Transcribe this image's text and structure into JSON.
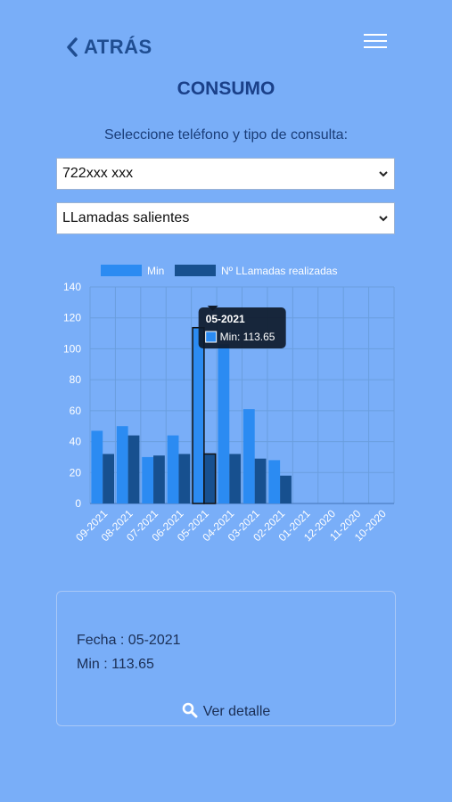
{
  "header": {
    "back_label": "ATRÁS",
    "title": "CONSUMO"
  },
  "subtitle": "Seleccione teléfono y tipo de consulta:",
  "selects": {
    "phone": {
      "value": "722xxx xxx"
    },
    "type": {
      "value": "LLamadas salientes"
    }
  },
  "colors": {
    "series_min": "#2b8bf2",
    "series_calls": "#17508f",
    "background": "#79aef8"
  },
  "chart_data": {
    "type": "bar",
    "categories": [
      "09-2021",
      "08-2021",
      "07-2021",
      "06-2021",
      "05-2021",
      "04-2021",
      "03-2021",
      "02-2021",
      "01-2021",
      "12-2020",
      "11-2020",
      "10-2020"
    ],
    "series": [
      {
        "name": "Min",
        "values": [
          47,
          50,
          30,
          44,
          113.65,
          103,
          61,
          28,
          0,
          0,
          0,
          0
        ]
      },
      {
        "name": "Nº LLamadas realizadas",
        "values": [
          32,
          44,
          31,
          32,
          32,
          32,
          29,
          18,
          0,
          0,
          0,
          0
        ]
      }
    ],
    "yticks": [
      0,
      20,
      40,
      60,
      80,
      100,
      120,
      140
    ],
    "ylim": [
      0,
      140
    ],
    "grid": true,
    "legend": "top",
    "tooltip": {
      "title": "05-2021",
      "text": "Min: 113.65"
    },
    "highlighted_category": "05-2021"
  },
  "card": {
    "fecha": "Fecha : 05-2021",
    "min": "Min : 113.65",
    "detail_label": "Ver detalle"
  }
}
